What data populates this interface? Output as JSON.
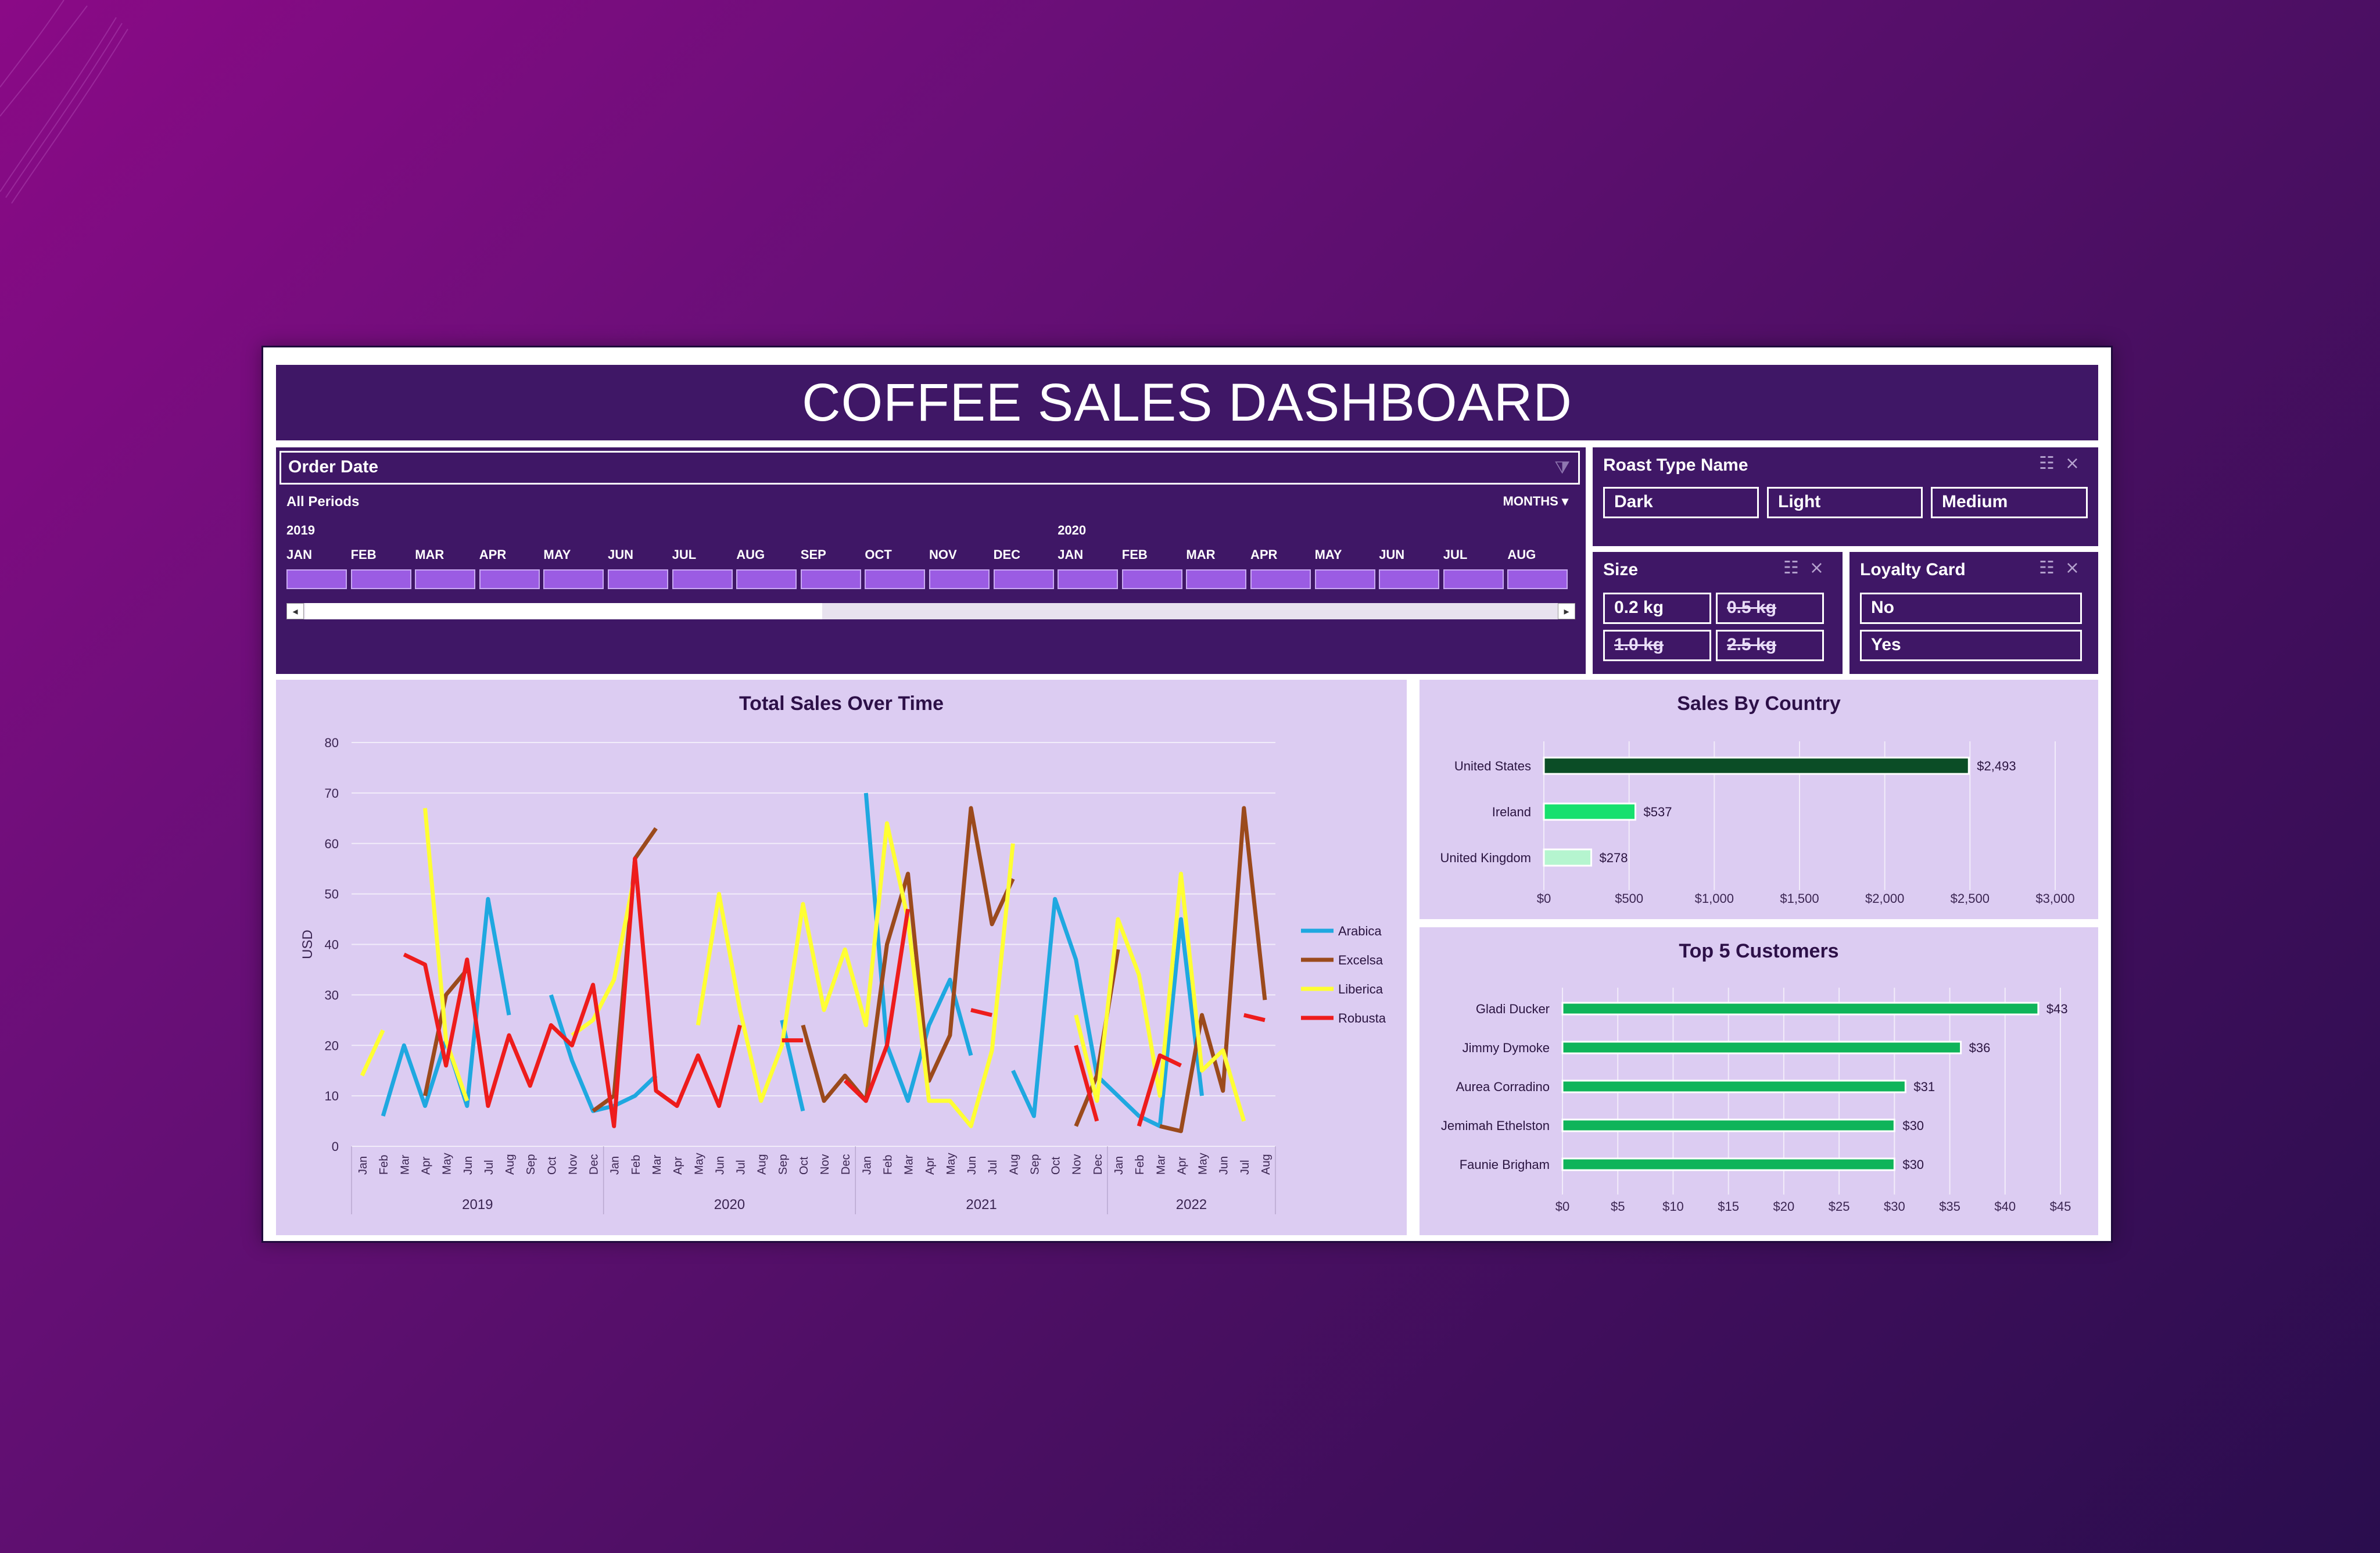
{
  "dashboard_title": "COFFEE SALES DASHBOARD",
  "timeline": {
    "field": "Order Date",
    "period_label": "All Periods",
    "mode_label": "MONTHS",
    "mode_arrow": "▾",
    "filter_icon": "filter-icon",
    "years": [
      "2019",
      "2020"
    ],
    "months": [
      "JAN",
      "FEB",
      "MAR",
      "APR",
      "MAY",
      "JUN",
      "JUL",
      "AUG",
      "SEP",
      "OCT",
      "NOV",
      "DEC",
      "JAN",
      "FEB",
      "MAR",
      "APR",
      "MAY",
      "JUN",
      "JUL",
      "AUG"
    ],
    "scroll_left": "◂",
    "scroll_right": "▸"
  },
  "slicers": {
    "roast": {
      "title": "Roast Type Name",
      "items": [
        {
          "label": "Dark",
          "selected": true
        },
        {
          "label": "Light",
          "selected": true
        },
        {
          "label": "Medium",
          "selected": true
        }
      ]
    },
    "size": {
      "title": "Size",
      "items": [
        {
          "label": "0.2 kg",
          "selected": true
        },
        {
          "label": "0.5 kg",
          "selected": false
        },
        {
          "label": "1.0 kg",
          "selected": false
        },
        {
          "label": "2.5 kg",
          "selected": false
        }
      ]
    },
    "loyalty": {
      "title": "Loyalty Card",
      "items": [
        {
          "label": "No",
          "selected": true
        },
        {
          "label": "Yes",
          "selected": true
        }
      ]
    },
    "multiselect_icon": "☷",
    "clear_filter_icon": "⨯"
  },
  "colors": {
    "arabica": "#1fa8e0",
    "excelsa": "#9b4a1c",
    "liberica": "#ffff33",
    "robusta": "#ee1c1c",
    "country_us": "#0b4d26",
    "country_ie": "#17e06e",
    "country_uk": "#b5f5cf",
    "customers": "#0fb45a"
  },
  "chart_data": [
    {
      "type": "line",
      "title": "Total Sales Over Time",
      "ylabel": "USD",
      "xlabel": "",
      "ylim": [
        0,
        80
      ],
      "yticks": [
        0,
        10,
        20,
        30,
        40,
        50,
        60,
        70,
        80
      ],
      "grid": true,
      "legend_position": "right",
      "x": [
        "Jan",
        "Feb",
        "Mar",
        "Apr",
        "May",
        "Jun",
        "Jul",
        "Aug",
        "Sep",
        "Oct",
        "Nov",
        "Dec",
        "Jan",
        "Feb",
        "Mar",
        "Apr",
        "May",
        "Jun",
        "Jul",
        "Aug",
        "Sep",
        "Oct",
        "Nov",
        "Dec",
        "Jan",
        "Feb",
        "Mar",
        "Apr",
        "May",
        "Jun",
        "Jul",
        "Aug",
        "Sep",
        "Oct",
        "Nov",
        "Dec",
        "Jan",
        "Feb",
        "Mar",
        "Apr",
        "May",
        "Jun",
        "Jul",
        "Aug"
      ],
      "year_groups": [
        {
          "label": "2019",
          "start": 0,
          "end": 11
        },
        {
          "label": "2020",
          "start": 12,
          "end": 23
        },
        {
          "label": "2021",
          "start": 24,
          "end": 35
        },
        {
          "label": "2022",
          "start": 36,
          "end": 43
        }
      ],
      "series": [
        {
          "name": "Arabica",
          "values": [
            null,
            6,
            20,
            8,
            21,
            8,
            49,
            26,
            null,
            30,
            17,
            7,
            8,
            10,
            14,
            null,
            null,
            null,
            null,
            null,
            25,
            7,
            null,
            null,
            70,
            20,
            9,
            24,
            33,
            18,
            null,
            15,
            6,
            49,
            37,
            14,
            10,
            6,
            4,
            45,
            10,
            null,
            null,
            null
          ]
        },
        {
          "name": "Excelsa",
          "values": [
            null,
            null,
            null,
            10,
            30,
            35,
            null,
            null,
            null,
            null,
            null,
            7,
            10,
            57,
            63,
            null,
            null,
            null,
            null,
            null,
            null,
            24,
            9,
            14,
            9,
            40,
            54,
            13,
            22,
            67,
            44,
            53,
            null,
            null,
            4,
            14,
            39,
            null,
            4,
            3,
            26,
            11,
            67,
            29
          ]
        },
        {
          "name": "Liberica",
          "values": [
            14,
            23,
            null,
            67,
            21,
            9,
            null,
            null,
            null,
            null,
            22,
            25,
            33,
            54,
            null,
            null,
            24,
            50,
            27,
            9,
            20,
            48,
            27,
            39,
            24,
            64,
            45,
            9,
            9,
            4,
            19,
            60,
            null,
            null,
            26,
            9,
            45,
            34,
            10,
            54,
            15,
            19,
            5,
            null
          ]
        },
        {
          "name": "Robusta",
          "values": [
            null,
            null,
            38,
            36,
            16,
            37,
            8,
            22,
            12,
            24,
            20,
            32,
            4,
            57,
            11,
            8,
            18,
            8,
            24,
            null,
            21,
            21,
            null,
            13,
            9,
            20,
            47,
            null,
            null,
            27,
            26,
            null,
            null,
            null,
            20,
            5,
            null,
            4,
            18,
            16,
            null,
            null,
            26,
            25
          ]
        }
      ]
    },
    {
      "type": "bar",
      "orientation": "horizontal",
      "title": "Sales By Country",
      "categories": [
        "United States",
        "Ireland",
        "United Kingdom"
      ],
      "values": [
        2493,
        537,
        278
      ],
      "value_labels": [
        "$2,493",
        "$537",
        "$278"
      ],
      "xlim": [
        0,
        3000
      ],
      "xticks": [
        "$0",
        "$500",
        "$1,000",
        "$1,500",
        "$2,000",
        "$2,500",
        "$3,000"
      ],
      "grid": true
    },
    {
      "type": "bar",
      "orientation": "horizontal",
      "title": "Top 5 Customers",
      "categories": [
        "Gladi Ducker",
        "Jimmy Dymoke",
        "Aurea Corradino",
        "Jemimah Ethelston",
        "Faunie Brigham"
      ],
      "values": [
        43,
        36,
        31,
        30,
        30
      ],
      "value_labels": [
        "$43",
        "$36",
        "$31",
        "$30",
        "$30"
      ],
      "xlim": [
        0,
        45
      ],
      "xticks": [
        "$0",
        "$5",
        "$10",
        "$15",
        "$20",
        "$25",
        "$30",
        "$35",
        "$40",
        "$45"
      ],
      "grid": true
    }
  ]
}
